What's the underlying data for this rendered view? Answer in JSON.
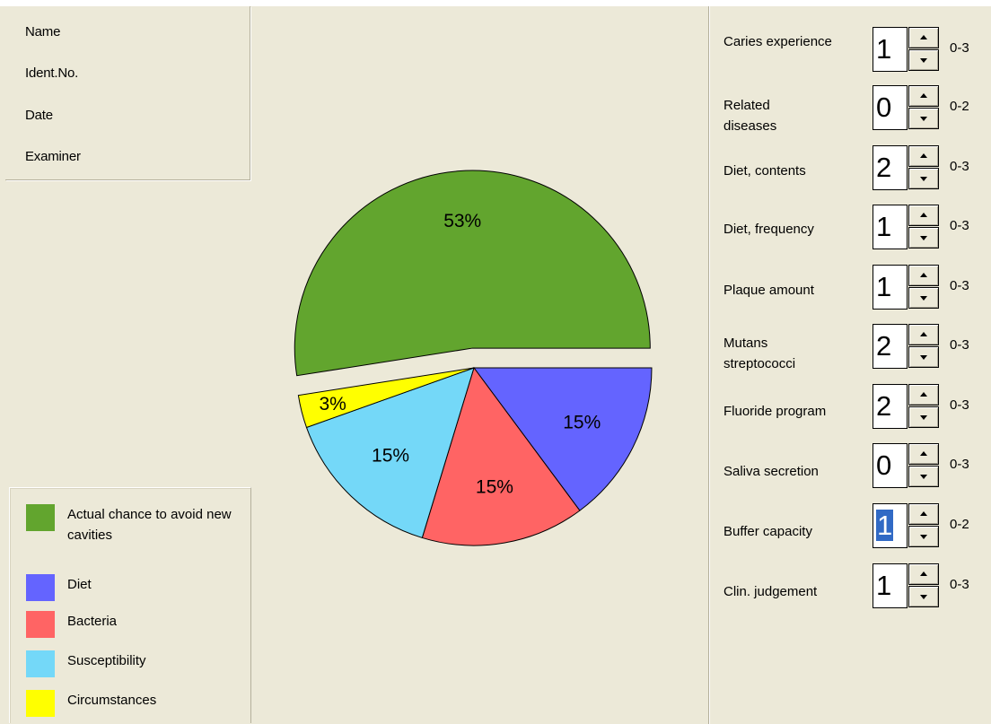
{
  "patient_info": {
    "name_label": "Name",
    "ident_label": "Ident.No.",
    "date_label": "Date",
    "examiner_label": "Examiner"
  },
  "chart_data": {
    "type": "pie",
    "slices": [
      {
        "label": "Actual chance to avoid new cavities",
        "value": 53,
        "color": "#62a52e",
        "exploded": true
      },
      {
        "label": "Diet",
        "value": 15,
        "color": "#6464ff"
      },
      {
        "label": "Bacteria",
        "value": 15,
        "color": "#ff6464"
      },
      {
        "label": "Susceptibility",
        "value": 15,
        "color": "#74d8f8"
      },
      {
        "label": "Circumstances",
        "value": 3,
        "color": "#ffff00"
      }
    ],
    "value_labels": [
      "53%",
      "15%",
      "15%",
      "15%",
      "3%"
    ]
  },
  "legend": {
    "items": [
      {
        "label": "Actual chance to avoid new cavities",
        "color": "#62a52e"
      },
      {
        "label": "Diet",
        "color": "#6464ff"
      },
      {
        "label": "Bacteria",
        "color": "#ff6464"
      },
      {
        "label": "Susceptibility",
        "color": "#74d8f8"
      },
      {
        "label": "Circumstances",
        "color": "#ffff00"
      }
    ]
  },
  "factors": [
    {
      "label": "Caries experience",
      "value": "1",
      "range": "0-3"
    },
    {
      "label": "Related diseases",
      "value": "0",
      "range": "0-2"
    },
    {
      "label": "Diet, contents",
      "value": "2",
      "range": "0-3"
    },
    {
      "label": "Diet, frequency",
      "value": "1",
      "range": "0-3"
    },
    {
      "label": "Plaque amount",
      "value": "1",
      "range": "0-3"
    },
    {
      "label": "Mutans streptococci",
      "value": "2",
      "range": "0-3"
    },
    {
      "label": "Fluoride program",
      "value": "2",
      "range": "0-3"
    },
    {
      "label": "Saliva secretion",
      "value": "0",
      "range": "0-3"
    },
    {
      "label": "Buffer capacity",
      "value": "1",
      "range": "0-2",
      "selected": true
    },
    {
      "label": "Clin. judgement",
      "value": "1",
      "range": "0-3"
    }
  ]
}
